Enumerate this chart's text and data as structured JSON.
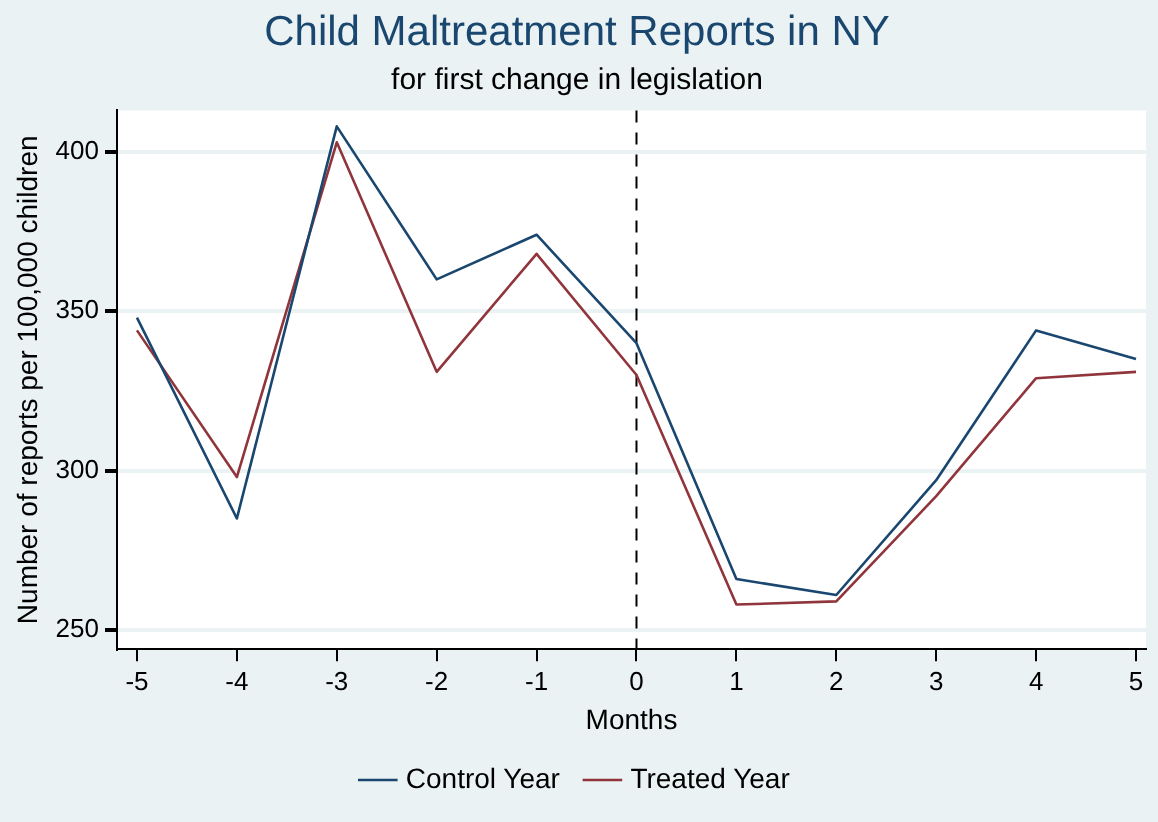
{
  "chart_data": {
    "type": "line",
    "title": "Child Maltreatment Reports in NY",
    "subtitle": "for first change in legislation",
    "xlabel": "Months",
    "ylabel": "Number of reports per 100,000 children",
    "x": [
      -5,
      -4,
      -3,
      -2,
      -1,
      0,
      1,
      2,
      3,
      4,
      5
    ],
    "series": [
      {
        "name": "Control Year",
        "color": "#1a476f",
        "values": [
          348,
          285,
          408,
          360,
          374,
          340,
          266,
          261,
          297,
          344,
          335
        ]
      },
      {
        "name": "Treated Year",
        "color": "#90353b",
        "values": [
          344,
          298,
          403,
          331,
          368,
          330,
          258,
          259,
          292,
          329,
          331
        ]
      }
    ],
    "xlim": [
      -5.2,
      5.1
    ],
    "xticks": [
      -5,
      -4,
      -3,
      -2,
      -1,
      0,
      1,
      2,
      3,
      4,
      5
    ],
    "ylim": [
      244,
      413
    ],
    "yticks": [
      250,
      300,
      350,
      400
    ],
    "ref_lines": [
      {
        "axis": "x",
        "value": 0,
        "line_style": "dashed"
      }
    ],
    "grid": "y",
    "legend": "bottom",
    "marker": "none",
    "line_style": "solid"
  }
}
